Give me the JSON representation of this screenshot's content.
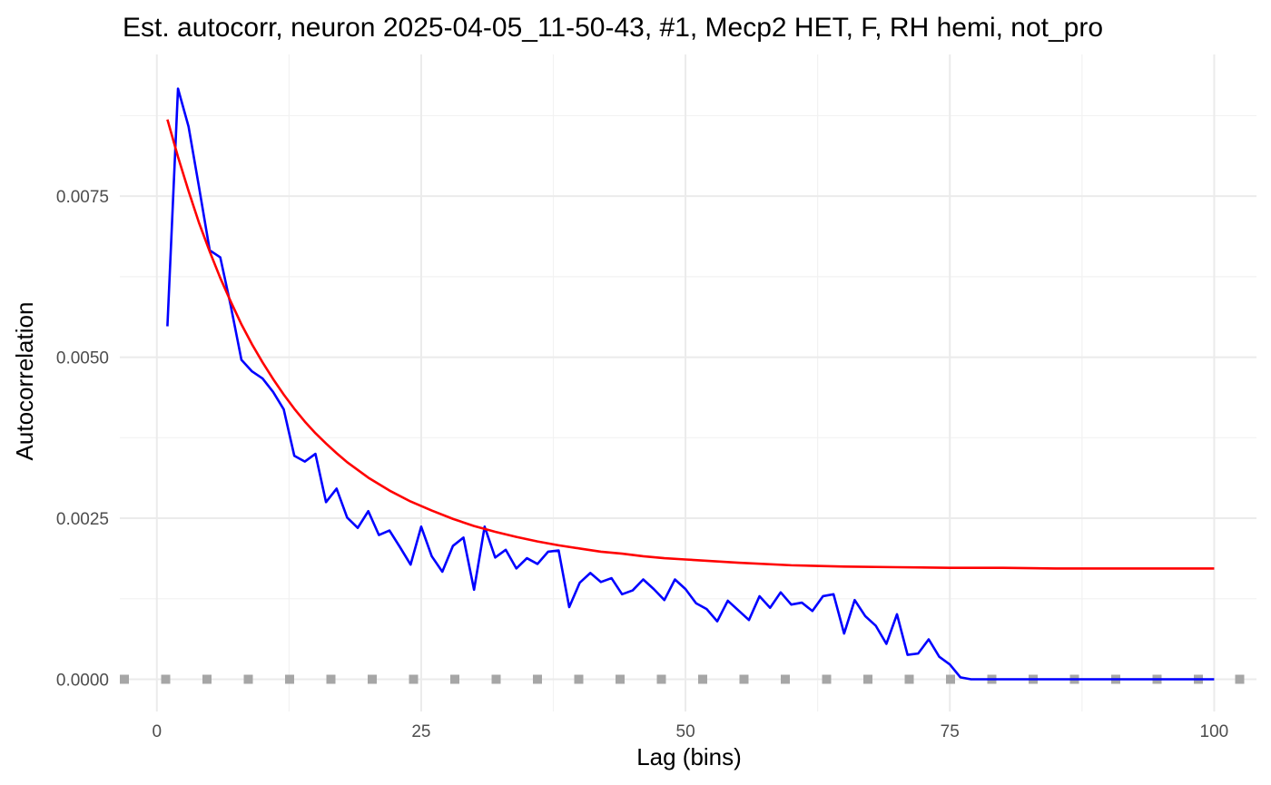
{
  "chart_data": {
    "type": "line",
    "title": "Est. autocorr, neuron 2025-04-05_11-50-43, #1, Mecp2 HET, F, RH hemi, not_pro",
    "xlabel": "Lag (bins)",
    "ylabel": "Autocorrelation",
    "xlim": [
      -3.5,
      104
    ],
    "ylim": [
      -0.0005,
      0.0097
    ],
    "x_ticks": [
      0,
      25,
      50,
      75,
      100
    ],
    "x_tick_labels": [
      "0",
      "25",
      "50",
      "75",
      "100"
    ],
    "y_ticks": [
      0,
      0.0025,
      0.005,
      0.0075
    ],
    "y_tick_labels": [
      "0.0000",
      "0.0025",
      "0.0050",
      "0.0075"
    ],
    "x_minor": [
      12.5,
      37.5,
      62.5,
      87.5
    ],
    "y_minor": [
      0.00125,
      0.00375,
      0.00625,
      0.00875
    ],
    "grid": true,
    "series": [
      {
        "color": "#0000ff",
        "style": "solid",
        "x": [
          1,
          2,
          3,
          4,
          5,
          6,
          7,
          8,
          9,
          10,
          11,
          12,
          13,
          14,
          15,
          16,
          17,
          18,
          19,
          20,
          21,
          22,
          23,
          24,
          25,
          26,
          27,
          28,
          29,
          30,
          31,
          32,
          33,
          34,
          35,
          36,
          37,
          38,
          39,
          40,
          41,
          42,
          43,
          44,
          45,
          46,
          47,
          48,
          49,
          50,
          51,
          52,
          53,
          54,
          55,
          56,
          57,
          58,
          59,
          60,
          61,
          62,
          63,
          64,
          65,
          66,
          67,
          68,
          69,
          70,
          71,
          72,
          73,
          74,
          75,
          76,
          77,
          78,
          79,
          80,
          81,
          82,
          83,
          84,
          85,
          86,
          87,
          88,
          89,
          90,
          91,
          92,
          93,
          94,
          95,
          96,
          97,
          98,
          99,
          100
        ],
        "y": [
          0.00548,
          0.00917,
          0.00858,
          0.00763,
          0.00666,
          0.00655,
          0.00579,
          0.00496,
          0.00478,
          0.00467,
          0.00446,
          0.00419,
          0.00347,
          0.00338,
          0.0035,
          0.00275,
          0.00296,
          0.00251,
          0.00235,
          0.00261,
          0.00224,
          0.00231,
          0.00205,
          0.00178,
          0.00237,
          0.00191,
          0.00167,
          0.00207,
          0.0022,
          0.00139,
          0.00237,
          0.00189,
          0.00201,
          0.00172,
          0.00188,
          0.00179,
          0.00198,
          0.002,
          0.00112,
          0.0015,
          0.00165,
          0.00151,
          0.00157,
          0.00132,
          0.00138,
          0.00155,
          0.0014,
          0.00123,
          0.00155,
          0.0014,
          0.00118,
          0.00109,
          0.0009,
          0.00122,
          0.00107,
          0.00092,
          0.00129,
          0.00111,
          0.00135,
          0.00116,
          0.00119,
          0.00106,
          0.00129,
          0.00132,
          0.00071,
          0.00123,
          0.00098,
          0.00083,
          0.00055,
          0.00101,
          0.00038,
          0.0004,
          0.00062,
          0.00035,
          0.00023,
          3e-05,
          0,
          0,
          0,
          0,
          0,
          0,
          0,
          0,
          0,
          0,
          0,
          0,
          0,
          0,
          0,
          0,
          0,
          0,
          0,
          0,
          0,
          0,
          0,
          0
        ]
      },
      {
        "color": "#ff0000",
        "style": "solid",
        "model": "exponential_fit",
        "x": [
          1,
          2,
          3,
          4,
          5,
          6,
          7,
          8,
          9,
          10,
          11,
          12,
          13,
          14,
          15,
          16,
          17,
          18,
          19,
          20,
          22,
          24,
          26,
          28,
          30,
          32,
          34,
          36,
          38,
          40,
          42,
          44,
          46,
          48,
          50,
          55,
          60,
          65,
          70,
          75,
          80,
          85,
          90,
          95,
          100
        ],
        "y": [
          0.00869,
          0.00811,
          0.00758,
          0.00708,
          0.00664,
          0.00623,
          0.00586,
          0.00551,
          0.0052,
          0.00492,
          0.00466,
          0.00442,
          0.0042,
          0.004,
          0.00382,
          0.00366,
          0.00351,
          0.00337,
          0.00325,
          0.00313,
          0.00293,
          0.00276,
          0.00262,
          0.00249,
          0.00238,
          0.00229,
          0.00221,
          0.00214,
          0.00208,
          0.00203,
          0.00198,
          0.00195,
          0.00191,
          0.00188,
          0.00186,
          0.00181,
          0.00177,
          0.00175,
          0.00174,
          0.00173,
          0.00173,
          0.00172,
          0.00172,
          0.00172,
          0.00172
        ]
      },
      {
        "color": "#a6a6a6",
        "style": "dotted",
        "x": [
          -3.5,
          104
        ],
        "y": [
          0,
          0
        ]
      }
    ]
  }
}
